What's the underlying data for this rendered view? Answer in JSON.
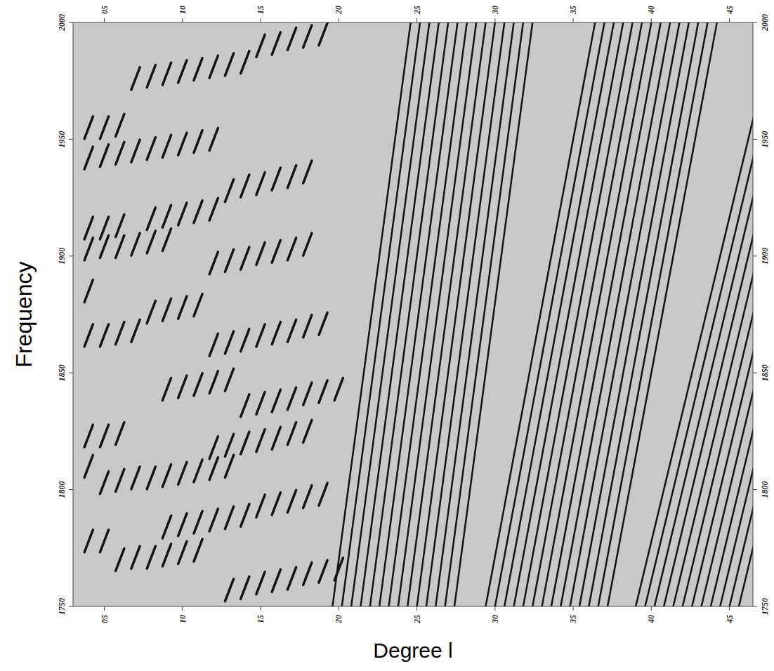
{
  "chart_data": {
    "type": "scatter",
    "x_label": "Degree l",
    "y_label": "Frequency",
    "xlim": [
      3,
      46.5
    ],
    "ylim": [
      1750,
      2000
    ],
    "xticks": [
      {
        "value": 5,
        "label": "05"
      },
      10,
      15,
      20,
      25,
      30,
      35,
      40,
      45
    ],
    "yticks": [
      1750,
      1800,
      1850,
      1900,
      1950,
      2000
    ],
    "grid": false,
    "color": "#141414",
    "marker": "dash",
    "x": [
      4,
      5,
      6,
      4,
      5,
      6,
      7,
      8,
      9,
      10,
      11,
      12,
      7,
      8,
      9,
      10,
      11,
      12,
      13,
      14,
      15,
      16,
      17,
      18,
      19,
      13,
      14,
      15,
      16,
      17,
      18,
      8,
      9,
      10,
      11,
      12,
      4,
      5,
      6,
      4,
      5,
      6,
      7,
      8,
      9,
      12,
      13,
      14,
      15,
      16,
      17,
      18,
      4,
      8,
      9,
      10,
      11,
      4,
      5,
      6,
      7,
      12,
      13,
      14,
      15,
      16,
      17,
      18,
      19,
      9,
      10,
      11,
      12,
      13,
      14,
      15,
      16,
      17,
      18,
      19,
      20,
      4,
      5,
      6,
      12,
      13,
      14,
      15,
      16,
      17,
      18,
      4,
      5,
      6,
      7,
      8,
      9,
      10,
      11,
      12,
      13,
      15,
      16,
      17,
      18,
      19,
      9,
      10,
      11,
      12,
      13,
      14,
      4,
      5,
      6,
      7,
      8,
      9,
      10,
      11,
      13,
      14,
      15,
      16,
      17,
      18,
      19,
      20
    ],
    "values": [
      1955,
      1955,
      1956,
      1942,
      1943,
      1944,
      1945,
      1946,
      1947,
      1948,
      1949,
      1950,
      1976,
      1977,
      1978,
      1979,
      1980,
      1981,
      1982,
      1983,
      1990,
      1991,
      1993,
      1994,
      1995,
      1928,
      1930,
      1931,
      1933,
      1934,
      1936,
      1916,
      1917,
      1918,
      1919,
      1920,
      1912,
      1912,
      1913,
      1903,
      1904,
      1904,
      1905,
      1906,
      1907,
      1897,
      1898,
      1899,
      1901,
      1902,
      1903,
      1905,
      1885,
      1876,
      1877,
      1878,
      1879,
      1866,
      1866,
      1867,
      1868,
      1862,
      1863,
      1864,
      1866,
      1867,
      1868,
      1870,
      1871,
      1843,
      1844,
      1845,
      1846,
      1847,
      1836,
      1837,
      1838,
      1839,
      1841,
      1842,
      1843,
      1823,
      1823,
      1824,
      1818,
      1819,
      1820,
      1821,
      1822,
      1824,
      1825,
      1810,
      1803,
      1804,
      1805,
      1805,
      1806,
      1807,
      1808,
      1809,
      1810,
      1793,
      1794,
      1795,
      1797,
      1798,
      1784,
      1785,
      1786,
      1787,
      1788,
      1789,
      1778,
      1778,
      1770,
      1771,
      1771,
      1772,
      1773,
      1774,
      1757,
      1758,
      1760,
      1761,
      1762,
      1764,
      1765,
      1766
    ],
    "ridges": [
      {
        "x": [
          19.6,
          24.6
        ],
        "y": [
          1750,
          2000
        ]
      },
      {
        "x": [
          20.2,
          25.2
        ],
        "y": [
          1750,
          2000
        ]
      },
      {
        "x": [
          20.8,
          25.8
        ],
        "y": [
          1750,
          2000
        ]
      },
      {
        "x": [
          21.4,
          26.4
        ],
        "y": [
          1750,
          2000
        ]
      },
      {
        "x": [
          22.0,
          27.0
        ],
        "y": [
          1750,
          2000
        ]
      },
      {
        "x": [
          22.6,
          27.6
        ],
        "y": [
          1750,
          2000
        ]
      },
      {
        "x": [
          23.2,
          28.2
        ],
        "y": [
          1750,
          2000
        ]
      },
      {
        "x": [
          23.8,
          28.8
        ],
        "y": [
          1750,
          2000
        ]
      },
      {
        "x": [
          24.4,
          29.4
        ],
        "y": [
          1750,
          2000
        ]
      },
      {
        "x": [
          25.0,
          30.0
        ],
        "y": [
          1750,
          2000
        ]
      },
      {
        "x": [
          25.6,
          30.6
        ],
        "y": [
          1750,
          2000
        ]
      },
      {
        "x": [
          26.2,
          31.2
        ],
        "y": [
          1750,
          2000
        ]
      },
      {
        "x": [
          26.8,
          31.8
        ],
        "y": [
          1750,
          2000
        ]
      },
      {
        "x": [
          27.4,
          32.4
        ],
        "y": [
          1750,
          2000
        ]
      },
      {
        "x": [
          29.4,
          36.4
        ],
        "y": [
          1750,
          2000
        ]
      },
      {
        "x": [
          30.0,
          37.0
        ],
        "y": [
          1750,
          2000
        ]
      },
      {
        "x": [
          30.6,
          37.6
        ],
        "y": [
          1750,
          2000
        ]
      },
      {
        "x": [
          31.2,
          38.2
        ],
        "y": [
          1750,
          2000
        ]
      },
      {
        "x": [
          31.8,
          38.8
        ],
        "y": [
          1750,
          2000
        ]
      },
      {
        "x": [
          32.4,
          39.4
        ],
        "y": [
          1750,
          2000
        ]
      },
      {
        "x": [
          33.0,
          40.0
        ],
        "y": [
          1750,
          2000
        ]
      },
      {
        "x": [
          33.6,
          40.6
        ],
        "y": [
          1750,
          2000
        ]
      },
      {
        "x": [
          34.2,
          41.2
        ],
        "y": [
          1750,
          2000
        ]
      },
      {
        "x": [
          34.8,
          41.8
        ],
        "y": [
          1750,
          2000
        ]
      },
      {
        "x": [
          35.4,
          42.4
        ],
        "y": [
          1750,
          2000
        ]
      },
      {
        "x": [
          36.0,
          43.0
        ],
        "y": [
          1750,
          2000
        ]
      },
      {
        "x": [
          36.6,
          43.6
        ],
        "y": [
          1750,
          2000
        ]
      },
      {
        "x": [
          37.2,
          44.2
        ],
        "y": [
          1750,
          2000
        ]
      },
      {
        "x": [
          39.0,
          48.0
        ],
        "y": [
          1750,
          2000
        ]
      },
      {
        "x": [
          39.6,
          48.6
        ],
        "y": [
          1750,
          2000
        ]
      },
      {
        "x": [
          40.2,
          49.2
        ],
        "y": [
          1750,
          2000
        ]
      },
      {
        "x": [
          40.8,
          49.8
        ],
        "y": [
          1750,
          2000
        ]
      },
      {
        "x": [
          41.4,
          50.4
        ],
        "y": [
          1750,
          2000
        ]
      },
      {
        "x": [
          42.0,
          51.0
        ],
        "y": [
          1750,
          2000
        ]
      },
      {
        "x": [
          42.6,
          51.6
        ],
        "y": [
          1750,
          2000
        ]
      },
      {
        "x": [
          43.2,
          52.2
        ],
        "y": [
          1750,
          2000
        ]
      },
      {
        "x": [
          43.8,
          52.8
        ],
        "y": [
          1750,
          2000
        ]
      },
      {
        "x": [
          44.4,
          53.4
        ],
        "y": [
          1750,
          2000
        ]
      },
      {
        "x": [
          45.0,
          54.0
        ],
        "y": [
          1750,
          2000
        ]
      },
      {
        "x": [
          45.6,
          54.6
        ],
        "y": [
          1750,
          2000
        ]
      }
    ]
  }
}
